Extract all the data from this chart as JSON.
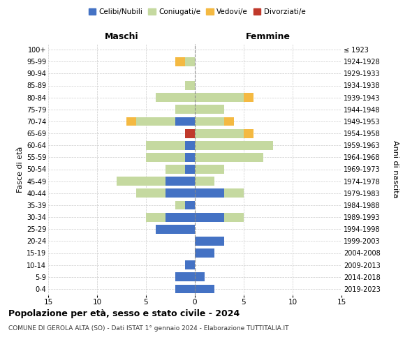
{
  "age_groups": [
    "0-4",
    "5-9",
    "10-14",
    "15-19",
    "20-24",
    "25-29",
    "30-34",
    "35-39",
    "40-44",
    "45-49",
    "50-54",
    "55-59",
    "60-64",
    "65-69",
    "70-74",
    "75-79",
    "80-84",
    "85-89",
    "90-94",
    "95-99",
    "100+"
  ],
  "birth_years": [
    "2019-2023",
    "2014-2018",
    "2009-2013",
    "2004-2008",
    "1999-2003",
    "1994-1998",
    "1989-1993",
    "1984-1988",
    "1979-1983",
    "1974-1978",
    "1969-1973",
    "1964-1968",
    "1959-1963",
    "1954-1958",
    "1949-1953",
    "1944-1948",
    "1939-1943",
    "1934-1938",
    "1929-1933",
    "1924-1928",
    "≤ 1923"
  ],
  "males": {
    "celibe": [
      2,
      2,
      1,
      0,
      0,
      4,
      3,
      1,
      3,
      3,
      1,
      1,
      1,
      0,
      2,
      0,
      0,
      0,
      0,
      0,
      0
    ],
    "coniugato": [
      0,
      0,
      0,
      0,
      0,
      0,
      2,
      1,
      3,
      5,
      2,
      4,
      4,
      0,
      4,
      2,
      4,
      1,
      0,
      1,
      0
    ],
    "vedovo": [
      0,
      0,
      0,
      0,
      0,
      0,
      0,
      0,
      0,
      0,
      0,
      0,
      0,
      0,
      1,
      0,
      0,
      0,
      0,
      1,
      0
    ],
    "divorziato": [
      0,
      0,
      0,
      0,
      0,
      0,
      0,
      0,
      0,
      0,
      0,
      0,
      0,
      1,
      0,
      0,
      0,
      0,
      0,
      0,
      0
    ]
  },
  "females": {
    "nubile": [
      2,
      1,
      0,
      2,
      3,
      0,
      3,
      0,
      3,
      0,
      0,
      0,
      0,
      0,
      0,
      0,
      0,
      0,
      0,
      0,
      0
    ],
    "coniugata": [
      0,
      0,
      0,
      0,
      0,
      0,
      2,
      0,
      2,
      2,
      3,
      7,
      8,
      5,
      3,
      3,
      5,
      0,
      0,
      0,
      0
    ],
    "vedova": [
      0,
      0,
      0,
      0,
      0,
      0,
      0,
      0,
      0,
      0,
      0,
      0,
      0,
      1,
      1,
      0,
      1,
      0,
      0,
      0,
      0
    ],
    "divorziata": [
      0,
      0,
      0,
      0,
      0,
      0,
      0,
      0,
      0,
      0,
      0,
      0,
      0,
      0,
      0,
      0,
      0,
      0,
      0,
      0,
      0
    ]
  },
  "colors": {
    "celibe_nubile": "#4472C4",
    "coniugato": "#C5D9A0",
    "vedovo": "#F4B942",
    "divorziato": "#C0392B"
  },
  "title": "Popolazione per età, sesso e stato civile - 2024",
  "subtitle": "COMUNE DI GEROLA ALTA (SO) - Dati ISTAT 1° gennaio 2024 - Elaborazione TUTTITALIA.IT",
  "ylabel_left": "Fasce di età",
  "ylabel_right": "Anni di nascita",
  "xlabel_left": "Maschi",
  "xlabel_right": "Femmine",
  "xlim": 15
}
